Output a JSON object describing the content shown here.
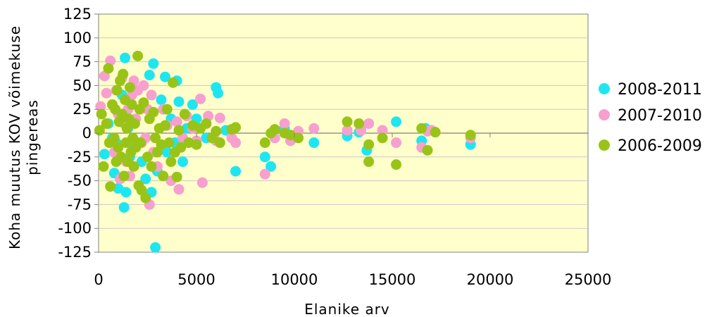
{
  "chart_data": {
    "type": "scatter",
    "title": "",
    "xlabel": "Elanike arv",
    "ylabel_lines": [
      "Koha muutus KOV võimekuse",
      "pingereas"
    ],
    "xlim": [
      0,
      25000
    ],
    "ylim": [
      -125,
      125
    ],
    "x_ticks": [
      "0",
      "5000",
      "10000",
      "15000",
      "20000",
      "25000"
    ],
    "y_ticks": [
      "125",
      "100",
      "75",
      "50",
      "25",
      "0",
      "-25",
      "-50",
      "-75",
      "-100",
      "-125"
    ],
    "grid": true,
    "legend_position": "right",
    "colors": {
      "plot_background": "#FFFFCC",
      "gridline": "#c8c8c8",
      "axis": "#808080",
      "series_2008_2011": "#1EE6F0",
      "series_2007_2010": "#F79FCF",
      "series_2006_2009": "#99C417"
    },
    "series": [
      {
        "name": "2008-2011",
        "color": "#1EE6F0",
        "points": [
          [
            300,
            -22
          ],
          [
            500,
            10
          ],
          [
            700,
            -5
          ],
          [
            800,
            -42
          ],
          [
            900,
            -10
          ],
          [
            1000,
            -58
          ],
          [
            1100,
            20
          ],
          [
            1200,
            40
          ],
          [
            1300,
            -78
          ],
          [
            1350,
            79
          ],
          [
            1400,
            -62
          ],
          [
            1500,
            5
          ],
          [
            1600,
            -25
          ],
          [
            1800,
            -15
          ],
          [
            2000,
            -10
          ],
          [
            2200,
            -30
          ],
          [
            2400,
            -48
          ],
          [
            2600,
            61
          ],
          [
            2700,
            -62
          ],
          [
            2800,
            73
          ],
          [
            2900,
            -120
          ],
          [
            3000,
            -40
          ],
          [
            3200,
            35
          ],
          [
            3400,
            59
          ],
          [
            3500,
            -20
          ],
          [
            3700,
            15
          ],
          [
            3900,
            -10
          ],
          [
            4000,
            55
          ],
          [
            4100,
            33
          ],
          [
            4300,
            -30
          ],
          [
            4500,
            5
          ],
          [
            4800,
            30
          ],
          [
            5000,
            15
          ],
          [
            5500,
            -5
          ],
          [
            6000,
            48
          ],
          [
            6100,
            42
          ],
          [
            6500,
            3
          ],
          [
            7000,
            -40
          ],
          [
            8500,
            -25
          ],
          [
            8800,
            -35
          ],
          [
            9500,
            5
          ],
          [
            10000,
            -3
          ],
          [
            11000,
            -10
          ],
          [
            12700,
            -3
          ],
          [
            13300,
            1
          ],
          [
            13700,
            -18
          ],
          [
            15200,
            12
          ],
          [
            16500,
            -8
          ],
          [
            16700,
            5
          ],
          [
            19000,
            -12
          ]
        ]
      },
      {
        "name": "2007-2010",
        "color": "#F79FCF",
        "points": [
          [
            100,
            28
          ],
          [
            300,
            60
          ],
          [
            400,
            42
          ],
          [
            600,
            76
          ],
          [
            700,
            30
          ],
          [
            800,
            -20
          ],
          [
            900,
            45
          ],
          [
            1000,
            20
          ],
          [
            1100,
            -48
          ],
          [
            1200,
            58
          ],
          [
            1300,
            10
          ],
          [
            1400,
            -30
          ],
          [
            1500,
            25
          ],
          [
            1600,
            -45
          ],
          [
            1700,
            40
          ],
          [
            1800,
            55
          ],
          [
            1900,
            15
          ],
          [
            2000,
            45
          ],
          [
            2200,
            -10
          ],
          [
            2300,
            50
          ],
          [
            2400,
            -5
          ],
          [
            2500,
            25
          ],
          [
            2600,
            -75
          ],
          [
            2700,
            40
          ],
          [
            2800,
            -20
          ],
          [
            3000,
            -35
          ],
          [
            3300,
            25
          ],
          [
            3500,
            8
          ],
          [
            3700,
            -50
          ],
          [
            4000,
            12
          ],
          [
            4100,
            -59
          ],
          [
            4300,
            -5
          ],
          [
            4500,
            18
          ],
          [
            4800,
            5
          ],
          [
            5000,
            -8
          ],
          [
            5200,
            36
          ],
          [
            5300,
            -52
          ],
          [
            5600,
            18
          ],
          [
            6000,
            -8
          ],
          [
            6200,
            16
          ],
          [
            6800,
            -5
          ],
          [
            7000,
            -10
          ],
          [
            8500,
            -43
          ],
          [
            9000,
            -5
          ],
          [
            9500,
            10
          ],
          [
            9800,
            -8
          ],
          [
            10200,
            2
          ],
          [
            11000,
            5
          ],
          [
            12700,
            3
          ],
          [
            13400,
            3
          ],
          [
            13800,
            10
          ],
          [
            14500,
            3
          ],
          [
            15200,
            -10
          ],
          [
            16500,
            -15
          ],
          [
            16800,
            2
          ],
          [
            17000,
            3
          ],
          [
            19000,
            -5
          ]
        ]
      },
      {
        "name": "2006-2009",
        "color": "#99C417",
        "points": [
          [
            50,
            3
          ],
          [
            150,
            20
          ],
          [
            250,
            -35
          ],
          [
            400,
            10
          ],
          [
            500,
            68
          ],
          [
            550,
            -10
          ],
          [
            600,
            -56
          ],
          [
            700,
            30
          ],
          [
            800,
            -5
          ],
          [
            850,
            25
          ],
          [
            900,
            -30
          ],
          [
            950,
            45
          ],
          [
            1000,
            -15
          ],
          [
            1050,
            12
          ],
          [
            1100,
            55
          ],
          [
            1150,
            -25
          ],
          [
            1200,
            20
          ],
          [
            1250,
            62
          ],
          [
            1300,
            -45
          ],
          [
            1350,
            35
          ],
          [
            1400,
            -10
          ],
          [
            1450,
            5
          ],
          [
            1500,
            -30
          ],
          [
            1550,
            15
          ],
          [
            1600,
            48
          ],
          [
            1650,
            -20
          ],
          [
            1700,
            30
          ],
          [
            1750,
            -5
          ],
          [
            1800,
            -35
          ],
          [
            1850,
            10
          ],
          [
            1900,
            -15
          ],
          [
            2000,
            81
          ],
          [
            2050,
            -55
          ],
          [
            2100,
            25
          ],
          [
            2150,
            -10
          ],
          [
            2200,
            -60
          ],
          [
            2300,
            32
          ],
          [
            2400,
            -68
          ],
          [
            2500,
            -25
          ],
          [
            2600,
            15
          ],
          [
            2700,
            -35
          ],
          [
            2800,
            22
          ],
          [
            2900,
            -5
          ],
          [
            3000,
            -20
          ],
          [
            3100,
            5
          ],
          [
            3200,
            -12
          ],
          [
            3300,
            -45
          ],
          [
            3400,
            8
          ],
          [
            3500,
            25
          ],
          [
            3600,
            -10
          ],
          [
            3700,
            -30
          ],
          [
            3800,
            53
          ],
          [
            3900,
            -20
          ],
          [
            4000,
            -46
          ],
          [
            4100,
            3
          ],
          [
            4200,
            -15
          ],
          [
            4400,
            20
          ],
          [
            4600,
            -10
          ],
          [
            4800,
            8
          ],
          [
            5000,
            -12
          ],
          [
            5200,
            5
          ],
          [
            5500,
            10
          ],
          [
            5800,
            -5
          ],
          [
            6000,
            2
          ],
          [
            6200,
            -10
          ],
          [
            6800,
            4
          ],
          [
            7000,
            6
          ],
          [
            8500,
            -10
          ],
          [
            8800,
            0
          ],
          [
            9000,
            4
          ],
          [
            9500,
            0
          ],
          [
            9800,
            -2
          ],
          [
            10200,
            -5
          ],
          [
            12700,
            12
          ],
          [
            13300,
            10
          ],
          [
            13800,
            -12
          ],
          [
            13800,
            -30
          ],
          [
            14500,
            -5
          ],
          [
            15200,
            -33
          ],
          [
            16500,
            5
          ],
          [
            16800,
            -18
          ],
          [
            17200,
            1
          ],
          [
            19000,
            -2
          ]
        ]
      }
    ]
  }
}
